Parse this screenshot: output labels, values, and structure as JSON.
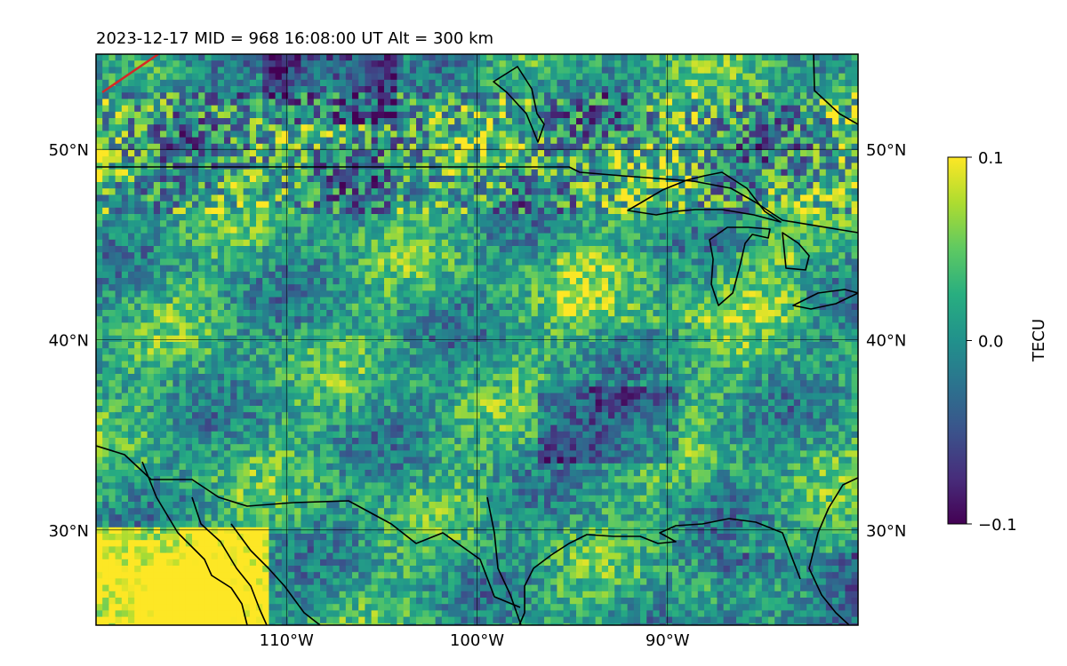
{
  "title": "2023-12-17  MID = 968    16:08:00  UT  Alt = 300 km",
  "map": {
    "lon_range": [
      -120,
      -80
    ],
    "lat_range": [
      25,
      55
    ],
    "lon_ticks": [
      {
        "value": -110,
        "label": "110°W"
      },
      {
        "value": -100,
        "label": "100°W"
      },
      {
        "value": -90,
        "label": "90°W"
      }
    ],
    "lat_ticks": [
      {
        "value": 50,
        "label": "50°N"
      },
      {
        "value": 40,
        "label": "40°N"
      },
      {
        "value": 30,
        "label": "30°N"
      }
    ],
    "grid": true,
    "coastline_color": "#000000",
    "track_color": "#d62728"
  },
  "colorbar": {
    "label": "TECU",
    "colormap": "viridis",
    "range": [
      -0.1,
      0.1
    ],
    "ticks": [
      {
        "value": 0.1,
        "label": "0.1"
      },
      {
        "value": 0.0,
        "label": "0.0"
      },
      {
        "value": -0.1,
        "label": "−0.1"
      }
    ]
  }
}
